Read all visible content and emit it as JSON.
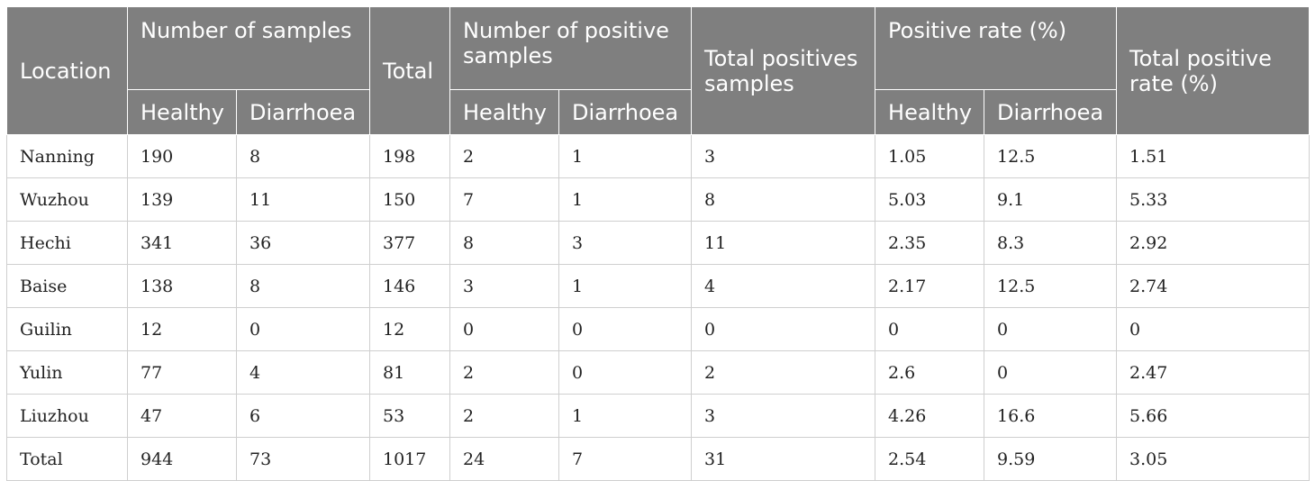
{
  "headers": {
    "location": "Location",
    "num_samples": "Number of samples",
    "total": "Total",
    "num_positive": "Number of positive samples",
    "total_positives": "Total positives samples",
    "positive_rate": "Positive rate (%)",
    "total_positive_rate": "Total positive rate (%)",
    "healthy": "Healthy",
    "diarrhoea": "Diarrhoea"
  },
  "rows": [
    {
      "location": "Nanning",
      "ns_healthy": "190",
      "ns_diarrhoea": "8",
      "total": "198",
      "np_healthy": "2",
      "np_diarrhoea": "1",
      "total_pos": "3",
      "pr_healthy": "1.05",
      "pr_diarrhoea": "12.5",
      "total_rate": "1.51"
    },
    {
      "location": "Wuzhou",
      "ns_healthy": "139",
      "ns_diarrhoea": "11",
      "total": "150",
      "np_healthy": "7",
      "np_diarrhoea": "1",
      "total_pos": "8",
      "pr_healthy": "5.03",
      "pr_diarrhoea": "9.1",
      "total_rate": "5.33"
    },
    {
      "location": "Hechi",
      "ns_healthy": "341",
      "ns_diarrhoea": "36",
      "total": "377",
      "np_healthy": "8",
      "np_diarrhoea": "3",
      "total_pos": "11",
      "pr_healthy": "2.35",
      "pr_diarrhoea": "8.3",
      "total_rate": "2.92"
    },
    {
      "location": "Baise",
      "ns_healthy": "138",
      "ns_diarrhoea": "8",
      "total": "146",
      "np_healthy": "3",
      "np_diarrhoea": "1",
      "total_pos": "4",
      "pr_healthy": "2.17",
      "pr_diarrhoea": "12.5",
      "total_rate": "2.74"
    },
    {
      "location": "Guilin",
      "ns_healthy": "12",
      "ns_diarrhoea": "0",
      "total": "12",
      "np_healthy": "0",
      "np_diarrhoea": "0",
      "total_pos": "0",
      "pr_healthy": "0",
      "pr_diarrhoea": "0",
      "total_rate": "0"
    },
    {
      "location": "Yulin",
      "ns_healthy": "77",
      "ns_diarrhoea": "4",
      "total": "81",
      "np_healthy": "2",
      "np_diarrhoea": "0",
      "total_pos": "2",
      "pr_healthy": "2.6",
      "pr_diarrhoea": "0",
      "total_rate": "2.47"
    },
    {
      "location": "Liuzhou",
      "ns_healthy": "47",
      "ns_diarrhoea": "6",
      "total": "53",
      "np_healthy": "2",
      "np_diarrhoea": "1",
      "total_pos": "3",
      "pr_healthy": "4.26",
      "pr_diarrhoea": "16.6",
      "total_rate": "5.66"
    },
    {
      "location": "Total",
      "ns_healthy": "944",
      "ns_diarrhoea": "73",
      "total": "1017",
      "np_healthy": "24",
      "np_diarrhoea": "7",
      "total_pos": "31",
      "pr_healthy": "2.54",
      "pr_diarrhoea": "9.59",
      "total_rate": "3.05"
    }
  ]
}
